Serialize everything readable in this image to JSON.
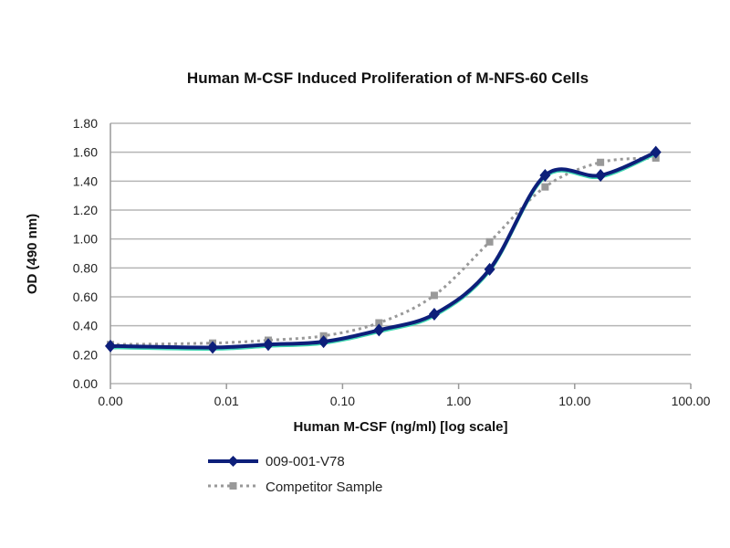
{
  "chart_data": {
    "type": "line",
    "title": "Human M-CSF Induced Proliferation of M-NFS-60 Cells",
    "xlabel": "Human M-CSF (ng/ml) [log scale]",
    "ylabel": "OD (490 nm)",
    "xscale": "log",
    "xlim": [
      0.001,
      100
    ],
    "ylim": [
      0,
      1.8
    ],
    "xticks": [
      "0.00",
      "0.01",
      "0.10",
      "1.00",
      "10.00",
      "100.00"
    ],
    "xtick_values": [
      0.001,
      0.01,
      0.1,
      1,
      10,
      100
    ],
    "yticks": [
      "0.00",
      "0.20",
      "0.40",
      "0.60",
      "0.80",
      "1.00",
      "1.20",
      "1.40",
      "1.60",
      "1.80"
    ],
    "ytick_values": [
      0,
      0.2,
      0.4,
      0.6,
      0.8,
      1.0,
      1.2,
      1.4,
      1.6,
      1.8
    ],
    "grid": "horizontal",
    "legend_position": "bottom-left",
    "x": [
      0.001,
      0.0076,
      0.0229,
      0.0686,
      0.206,
      0.617,
      1.85,
      5.56,
      16.7,
      50
    ],
    "series": [
      {
        "name": "009-001-V78",
        "color": "#0d1f7a",
        "style": "solid",
        "marker": "diamond",
        "values": [
          0.26,
          0.25,
          0.27,
          0.29,
          0.37,
          0.48,
          0.79,
          1.44,
          1.44,
          1.6
        ]
      },
      {
        "name": "Competitor Sample",
        "color": "#999999",
        "style": "dotted",
        "marker": "square",
        "values": [
          0.27,
          0.28,
          0.3,
          0.33,
          0.42,
          0.61,
          0.98,
          1.36,
          1.53,
          1.56
        ]
      }
    ]
  }
}
